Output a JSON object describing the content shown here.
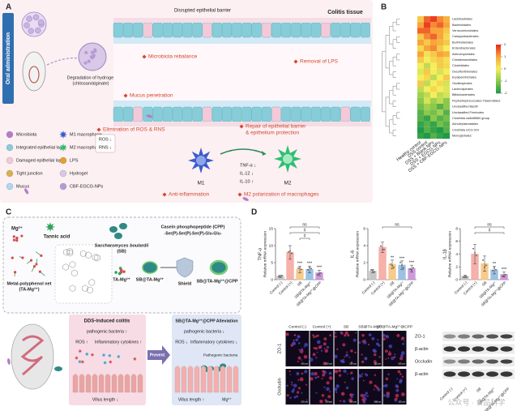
{
  "panel_a": {
    "label": "A",
    "route": "Oral administration",
    "tissue": "Colitis tissue",
    "disrupted": "Disrupted epithelial barrier",
    "hydrogel_line1": "Degradation of hydrogel",
    "hydrogel_line2": "(chitosan/alginate)",
    "effects": {
      "microbiota": "Microbiota rebalance",
      "lps": "Removal of LPS",
      "mucus": "Mucus penetration",
      "ros": "Elimination of ROS & RNS",
      "repair_line1": "Repair of epithelial barrier",
      "repair_line2": "& epithelium protection",
      "anti": "Anti-inflammation",
      "m2pol": "M2 polarization of macrophages"
    },
    "legend": [
      "Microbiota",
      "Integrated epithelial layer",
      "Damaged epithelial layer",
      "Tight junction",
      "Mucus",
      "M1 macrophage",
      "M2 macrophage",
      "LPS",
      "Hydrogel",
      "CBF-EGCG-NPs"
    ],
    "ros": "ROS ↓",
    "rns": "RNS ↓",
    "m1": "M1",
    "m2": "M2",
    "cytokines": [
      "TNF-α ↓",
      "IL-12 ↓",
      "IL-10 ↑"
    ]
  },
  "panel_b": {
    "label": "B",
    "rows": [
      "Lactobacillales",
      "Bacteroidales",
      "Verrucomicrobiales",
      "Campylobacterales",
      "Burkholderiales",
      "Enterobacterales",
      "Actinomycetales",
      "Christensenellales",
      "Clostridiales",
      "Desulfovibrionales",
      "Erysipelotrichales",
      "Oscillospirales",
      "Lachnospirales",
      "Bifidobacteriales",
      "Peptostreptococcales-Tissierellales",
      "Unclassified Bacilli",
      "Unclassified Firmicutes",
      "Clostridia vadinBB60 group",
      "Acholeplasmatales",
      "Clostridia UCG-014",
      "Monoglobales"
    ],
    "columns": [
      "Healthy control",
      "DSS control",
      "DSS + Blank NPs",
      "DSS + EGCG NPs",
      "DSS + CBF-EGCG-NPs"
    ],
    "values": [
      [
        0.5,
        1.5,
        1.8,
        1.2,
        0.8
      ],
      [
        1,
        1.8,
        1.2,
        1.5,
        1
      ],
      [
        1.5,
        1.5,
        1,
        1,
        0.5
      ],
      [
        0.5,
        1.2,
        1.5,
        1,
        0.3
      ],
      [
        1,
        0.5,
        1,
        0.8,
        0.5
      ],
      [
        0.3,
        1,
        1.2,
        0.5,
        0
      ],
      [
        1,
        0.2,
        0.5,
        1,
        0.8
      ],
      [
        0.5,
        0,
        0.3,
        0.5,
        0.2
      ],
      [
        0,
        -0.5,
        0,
        0.5,
        0.3
      ],
      [
        -0.2,
        0.5,
        0,
        -0.3,
        0
      ],
      [
        0,
        0.3,
        -0.5,
        0,
        0.5
      ],
      [
        0.5,
        -0.5,
        0,
        0.3,
        -0.3
      ],
      [
        -0.5,
        0,
        0.3,
        0,
        -0.2
      ],
      [
        -0.8,
        -0.5,
        0,
        -0.5,
        -0.3
      ],
      [
        -1,
        -0.3,
        -0.8,
        -0.5,
        -1
      ],
      [
        -1.2,
        -0.8,
        -1,
        -1.5,
        -1
      ],
      [
        -1.5,
        -1,
        -1.2,
        -0.8,
        -1.5
      ],
      [
        -1.5,
        -1.8,
        -1,
        -1.5,
        -1.2
      ],
      [
        -1.8,
        -1.5,
        -1.8,
        -1.2,
        -1.5
      ],
      [
        -2,
        -1.5,
        -1.8,
        -2,
        -1.5
      ],
      [
        -1.8,
        -2,
        -1.5,
        -1.8,
        -2
      ]
    ],
    "scale_ticks": [
      2,
      1,
      0,
      -1,
      -2
    ],
    "scale_colors": [
      "#e8241c",
      "#f8a43a",
      "#f4ee5a",
      "#8cc84b",
      "#1f9a48"
    ]
  },
  "panel_c": {
    "label": "C",
    "mg": "Mg²⁺",
    "tannic": "Tannic acid",
    "net_line1": "Metal-polyphenol net",
    "net_line2": "(TA-Mg²⁺)",
    "sb_line1": "Saccharomyces boulardii",
    "sb_line2": "(SB)",
    "ta_mg": "TA-Mg²⁺",
    "cpp": "Casein phosphopeptide (CPP)",
    "cpp_seq": "-Ser(P)-Ser(P)-Ser(P)-Glu-Glu-",
    "sb_ta": "SB@TA-Mg²⁺",
    "shield": "Shield",
    "sb_ta_cpp": "SB@TA-Mg²⁺@CPP",
    "colitis": {
      "title": "DDS-induced colitis",
      "bacteria": "pathogenic bacteria ↑",
      "ros": "ROS ↑",
      "cytokines": "Inflammatory cytokines ↑",
      "villus": "Villus length ↓"
    },
    "prevent": "Prevent",
    "alleviation": {
      "title": "SB@TA-Mg²⁺@CPP Alleviation",
      "bacteria": "pathogenic bacteria ↓",
      "ros": "ROS ↓",
      "cytokines": "Inflammatory cytokines ↓",
      "pathogen": "Pathogenic bacteria",
      "villus": "Villus length ↑",
      "mg": "Mg²⁺"
    }
  },
  "panel_d": {
    "label": "D",
    "categories": [
      "Control (-)",
      "Control (+)",
      "SB",
      "SB@TA-Mg²⁺",
      "SB@TA-Mg²⁺@CPP"
    ],
    "colors": [
      "#bdbdbd",
      "#f4a49c",
      "#f6c27a",
      "#8db7e0",
      "#c58ad6"
    ],
    "charts": [
      {
        "type": "bar",
        "title": "TNF-α",
        "ylabel": "Relative mRNA expression",
        "values": [
          1,
          8,
          3,
          3,
          2
        ],
        "errors": [
          0.3,
          2,
          1,
          1,
          0.8
        ],
        "ylim": [
          0,
          15
        ],
        "yticks": [
          0,
          5,
          10,
          15
        ],
        "stars": {
          "2": "***",
          "3": "***",
          "4": "***"
        },
        "brackets": [
          "ns",
          "#",
          "#"
        ]
      },
      {
        "type": "bar",
        "title": "IL-6",
        "ylabel": "Relative mRNA expression",
        "values": [
          1,
          3.8,
          1.8,
          1.7,
          1.3
        ],
        "errors": [
          0.2,
          0.6,
          0.5,
          0.5,
          0.4
        ],
        "ylim": [
          0,
          6
        ],
        "yticks": [
          0,
          2,
          4,
          6
        ],
        "stars": {
          "2": "**",
          "3": "***",
          "4": "***"
        },
        "brackets": [
          "ns"
        ]
      },
      {
        "type": "bar",
        "title": "IL-1β",
        "ylabel": "Relative mRNA expression",
        "values": [
          0.5,
          4,
          2.5,
          1.5,
          0.8
        ],
        "errors": [
          0.2,
          1.5,
          1.2,
          0.6,
          0.4
        ],
        "ylim": [
          0,
          8
        ],
        "yticks": [
          0,
          2,
          4,
          6,
          8
        ],
        "stars": {
          "3": "**",
          "4": "***"
        },
        "brackets": [
          "ns",
          "#"
        ]
      }
    ],
    "images": {
      "rows": [
        "ZO-1",
        "Occludin"
      ],
      "scale_bar": "100 μm"
    },
    "blot": {
      "rows": [
        "ZO-1",
        "β-actin",
        "Occludin",
        "β-actin"
      ]
    },
    "watermark": "公众号 · 食品科学"
  }
}
